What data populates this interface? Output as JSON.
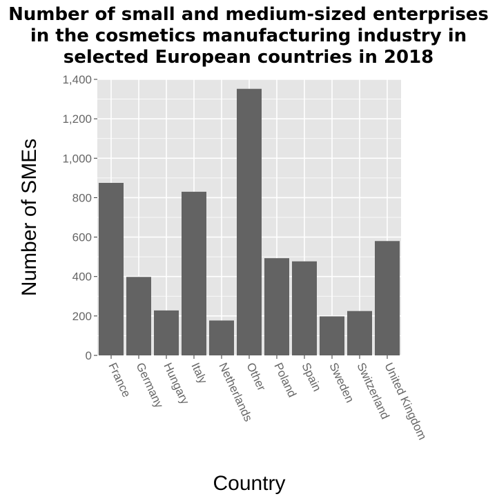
{
  "chart_data": {
    "type": "bar",
    "title_lines": [
      "Number of small and medium-sized enterprises",
      "in the cosmetics manufacturing industry in",
      "selected European countries in 2018"
    ],
    "xlabel": "Country",
    "ylabel": "Number of SMEs",
    "categories": [
      "France",
      "Germany",
      "Hungary",
      "Italy",
      "Netherlands",
      "Other",
      "Poland",
      "Spain",
      "Sweden",
      "Switzerland",
      "United Kingdom"
    ],
    "values": [
      875,
      398,
      228,
      830,
      177,
      1352,
      493,
      477,
      198,
      225,
      580
    ],
    "ylim": [
      0,
      1400
    ],
    "yticks": [
      0,
      200,
      400,
      600,
      800,
      1000,
      1200,
      1400
    ],
    "ytick_labels": [
      "0",
      "200",
      "400",
      "600",
      "800",
      "1,000",
      "1,200",
      "1,400"
    ],
    "grid": true,
    "colors": {
      "bar": "#636363",
      "panel": "#e5e5e5",
      "grid": "#ffffff"
    }
  }
}
